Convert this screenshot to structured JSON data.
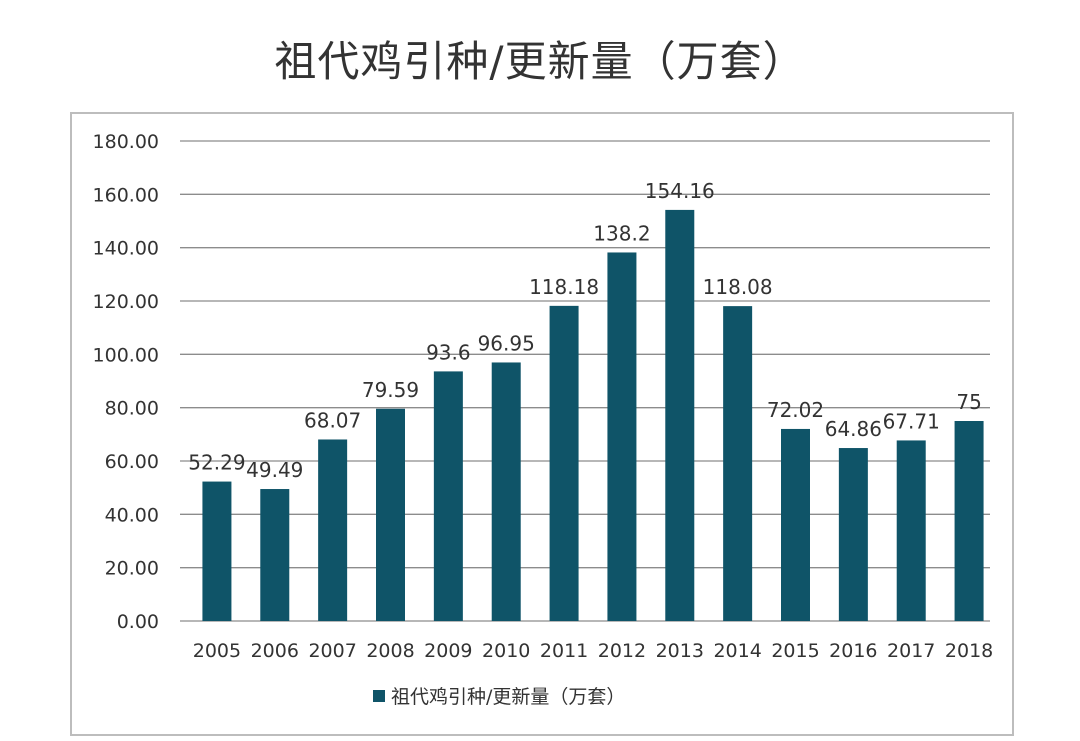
{
  "title": "祖代鸡引种/更新量（万套）",
  "chart_data": {
    "type": "bar",
    "title": "祖代鸡引种/更新量（万套）",
    "categories": [
      "2005",
      "2006",
      "2007",
      "2008",
      "2009",
      "2010",
      "2011",
      "2012",
      "2013",
      "2014",
      "2015",
      "2016",
      "2017",
      "2018"
    ],
    "series": [
      {
        "name": "祖代鸡引种/更新量（万套）",
        "values": [
          52.29,
          49.49,
          68.07,
          79.59,
          93.6,
          96.95,
          118.18,
          138.2,
          154.16,
          118.08,
          72.02,
          64.86,
          67.71,
          75
        ],
        "labels": [
          "52.29",
          "49.49",
          "68.07",
          "79.59",
          "93.6",
          "96.95",
          "118.18",
          "138.2",
          "154.16",
          "118.08",
          "72.02",
          "64.86",
          "67.71",
          "75"
        ],
        "color": "#0f5468"
      }
    ],
    "ylim": [
      0,
      180
    ],
    "yticks": [
      "0.00",
      "20.00",
      "40.00",
      "60.00",
      "80.00",
      "100.00",
      "120.00",
      "140.00",
      "160.00",
      "180.00"
    ],
    "grid": true,
    "legend": "bottom",
    "xlabel": "",
    "ylabel": ""
  }
}
